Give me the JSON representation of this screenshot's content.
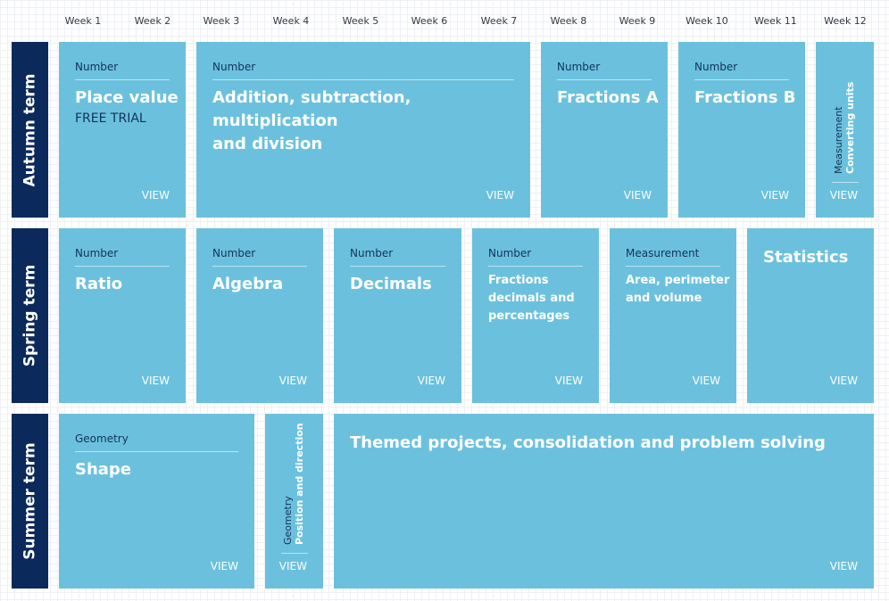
{
  "weeks": [
    "Week 1",
    "Week 2",
    "Week 3",
    "Week 4",
    "Week 5",
    "Week 6",
    "Week 7",
    "Week 8",
    "Week 9",
    "Week 10",
    "Week 11",
    "Week 12"
  ],
  "terms": {
    "autumn": "Autumn term",
    "spring": "Spring term",
    "summer": "Summer term"
  },
  "view_label": "VIEW",
  "autumn": {
    "place_value": {
      "category": "Number",
      "title": "Place value",
      "badge": "FREE TRIAL"
    },
    "four_ops": {
      "category": "Number",
      "title_line1": "Addition, subtraction, multiplication",
      "title_line2": "and division"
    },
    "fractions_a": {
      "category": "Number",
      "title": "Fractions A"
    },
    "fractions_b": {
      "category": "Number",
      "title": "Fractions B"
    },
    "converting_units": {
      "category": "Measurement",
      "title": "Converting units"
    }
  },
  "spring": {
    "ratio": {
      "category": "Number",
      "title": "Ratio"
    },
    "algebra": {
      "category": "Number",
      "title": "Algebra"
    },
    "decimals": {
      "category": "Number",
      "title": "Decimals"
    },
    "fdp": {
      "category": "Number",
      "title_line1": "Fractions",
      "title_line2": "decimals and",
      "title_line3": "percentages"
    },
    "area": {
      "category": "Measurement",
      "title_line1": "Area, perimeter",
      "title_line2": "and volume"
    },
    "statistics": {
      "title": "Statistics"
    }
  },
  "summer": {
    "shape": {
      "category": "Geometry",
      "title": "Shape"
    },
    "position": {
      "category": "Geometry",
      "title": "Position and direction"
    },
    "themed": {
      "title": "Themed projects, consolidation and problem solving"
    }
  }
}
